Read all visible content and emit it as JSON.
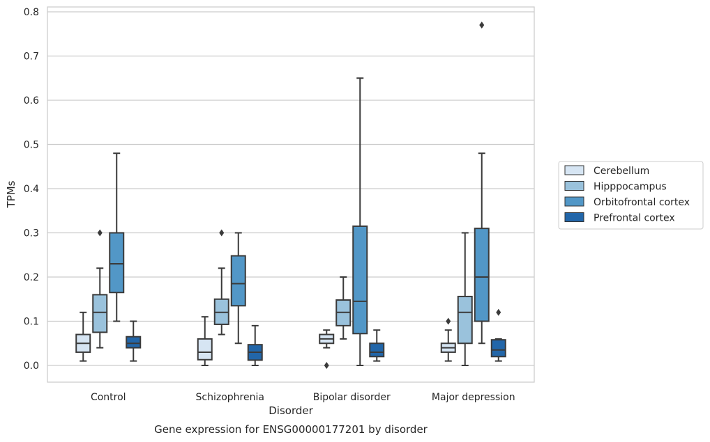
{
  "chart_data": {
    "type": "boxplot",
    "caption": "Gene expression for ENSG00000177201 by disorder",
    "xlabel": "Disorder",
    "ylabel": "TPMs",
    "ylim": [
      -0.04,
      0.81
    ],
    "yticks": [
      "0.0",
      "0.1",
      "0.2",
      "0.3",
      "0.4",
      "0.5",
      "0.6",
      "0.7",
      "0.8"
    ],
    "grid": true,
    "legend_position": "right",
    "categories": [
      "Control",
      "Schizophrenia",
      "Bipolar disorder",
      "Major depression"
    ],
    "series": [
      {
        "name": "Cerebellum",
        "color": "#d6e5f3",
        "boxes": [
          {
            "whislo": 0.01,
            "q1": 0.03,
            "med": 0.05,
            "q3": 0.07,
            "whishi": 0.12,
            "fliers": []
          },
          {
            "whislo": 0.0,
            "q1": 0.013,
            "med": 0.03,
            "q3": 0.06,
            "whishi": 0.11,
            "fliers": []
          },
          {
            "whislo": 0.04,
            "q1": 0.05,
            "med": 0.06,
            "q3": 0.07,
            "whishi": 0.08,
            "fliers": [
              0.0
            ]
          },
          {
            "whislo": 0.01,
            "q1": 0.03,
            "med": 0.04,
            "q3": 0.05,
            "whishi": 0.08,
            "fliers": [
              0.1
            ]
          }
        ]
      },
      {
        "name": "Hipppocampus",
        "color": "#9ac2dc",
        "boxes": [
          {
            "whislo": 0.04,
            "q1": 0.075,
            "med": 0.12,
            "q3": 0.16,
            "whishi": 0.22,
            "fliers": [
              0.3
            ]
          },
          {
            "whislo": 0.07,
            "q1": 0.093,
            "med": 0.12,
            "q3": 0.15,
            "whishi": 0.22,
            "fliers": [
              0.3
            ]
          },
          {
            "whislo": 0.06,
            "q1": 0.09,
            "med": 0.12,
            "q3": 0.148,
            "whishi": 0.2,
            "fliers": []
          },
          {
            "whislo": 0.0,
            "q1": 0.05,
            "med": 0.12,
            "q3": 0.156,
            "whishi": 0.3,
            "fliers": []
          }
        ]
      },
      {
        "name": "Orbitofrontal cortex",
        "color": "#5297c7",
        "boxes": [
          {
            "whislo": 0.1,
            "q1": 0.165,
            "med": 0.23,
            "q3": 0.3,
            "whishi": 0.48,
            "fliers": []
          },
          {
            "whislo": 0.05,
            "q1": 0.135,
            "med": 0.185,
            "q3": 0.248,
            "whishi": 0.3,
            "fliers": []
          },
          {
            "whislo": 0.0,
            "q1": 0.072,
            "med": 0.145,
            "q3": 0.315,
            "whishi": 0.65,
            "fliers": []
          },
          {
            "whislo": 0.05,
            "q1": 0.1,
            "med": 0.2,
            "q3": 0.31,
            "whishi": 0.48,
            "fliers": [
              0.77
            ]
          }
        ]
      },
      {
        "name": "Prefrontal cortex",
        "color": "#2266a9",
        "boxes": [
          {
            "whislo": 0.01,
            "q1": 0.04,
            "med": 0.05,
            "q3": 0.065,
            "whishi": 0.1,
            "fliers": []
          },
          {
            "whislo": 0.0,
            "q1": 0.012,
            "med": 0.03,
            "q3": 0.047,
            "whishi": 0.09,
            "fliers": []
          },
          {
            "whislo": 0.01,
            "q1": 0.02,
            "med": 0.03,
            "q3": 0.05,
            "whishi": 0.08,
            "fliers": []
          },
          {
            "whislo": 0.01,
            "q1": 0.02,
            "med": 0.035,
            "q3": 0.058,
            "whishi": 0.06,
            "fliers": [
              0.12
            ]
          }
        ]
      }
    ]
  }
}
